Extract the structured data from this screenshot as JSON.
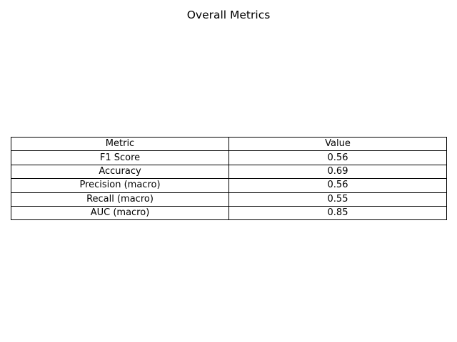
{
  "chart_data": {
    "type": "table",
    "title": "Overall Metrics",
    "columns": [
      "Metric",
      "Value"
    ],
    "rows": [
      [
        "F1 Score",
        "0.56"
      ],
      [
        "Accuracy",
        "0.69"
      ],
      [
        "Precision (macro)",
        "0.56"
      ],
      [
        "Recall (macro)",
        "0.55"
      ],
      [
        "AUC (macro)",
        "0.85"
      ]
    ]
  }
}
